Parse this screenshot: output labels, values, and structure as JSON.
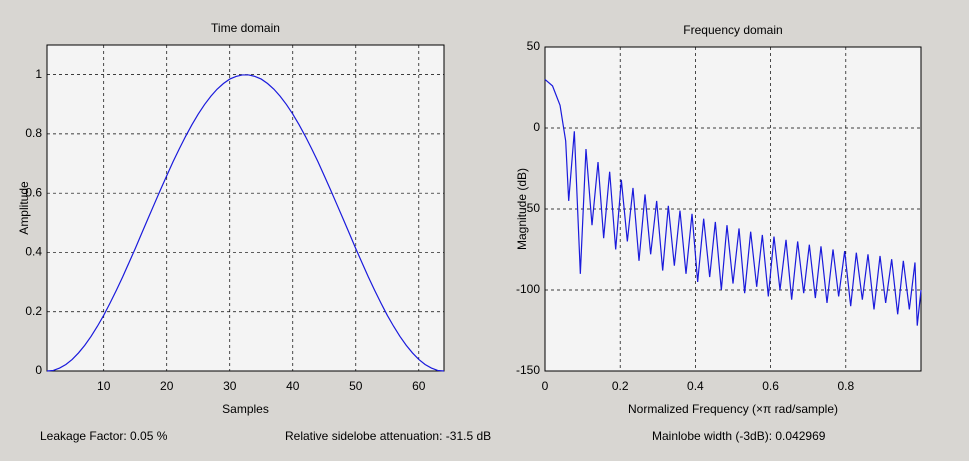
{
  "chart_data": [
    {
      "type": "line",
      "title": "Time domain",
      "xlabel": "Samples",
      "ylabel": "Amplitude",
      "color": "#1a1adc",
      "grid": true,
      "xlim": [
        1,
        64
      ],
      "ylim": [
        0,
        1.1
      ],
      "xticks": [
        10,
        20,
        30,
        40,
        50,
        60
      ],
      "yticks": [
        0,
        0.2,
        0.4,
        0.6,
        0.8,
        1
      ],
      "x": [
        1,
        2,
        3,
        4,
        5,
        6,
        7,
        8,
        9,
        10,
        11,
        12,
        13,
        14,
        15,
        16,
        17,
        18,
        19,
        20,
        21,
        22,
        23,
        24,
        25,
        26,
        27,
        28,
        29,
        30,
        31,
        32,
        33,
        34,
        35,
        36,
        37,
        38,
        39,
        40,
        41,
        42,
        43,
        44,
        45,
        46,
        47,
        48,
        49,
        50,
        51,
        52,
        53,
        54,
        55,
        56,
        57,
        58,
        59,
        60,
        61,
        62,
        63,
        64
      ],
      "values": [
        0,
        0.002,
        0.01,
        0.022,
        0.039,
        0.061,
        0.087,
        0.117,
        0.151,
        0.188,
        0.229,
        0.272,
        0.317,
        0.365,
        0.413,
        0.463,
        0.513,
        0.562,
        0.611,
        0.659,
        0.706,
        0.75,
        0.792,
        0.831,
        0.867,
        0.899,
        0.927,
        0.951,
        0.97,
        0.985,
        0.994,
        0.999,
        0.999,
        0.994,
        0.985,
        0.97,
        0.951,
        0.927,
        0.899,
        0.867,
        0.831,
        0.792,
        0.75,
        0.706,
        0.659,
        0.611,
        0.562,
        0.513,
        0.463,
        0.413,
        0.365,
        0.317,
        0.272,
        0.229,
        0.188,
        0.151,
        0.117,
        0.087,
        0.061,
        0.039,
        0.022,
        0.01,
        0.002,
        0
      ]
    },
    {
      "type": "line",
      "title": "Frequency domain",
      "xlabel": "Normalized Frequency  (×π rad/sample)",
      "ylabel": "Magnitude (dB)",
      "color": "#1a1adc",
      "grid": true,
      "xlim": [
        0,
        1
      ],
      "ylim": [
        -150,
        50
      ],
      "xticks": [
        0,
        0.2,
        0.4,
        0.6,
        0.8
      ],
      "yticks": [
        -150,
        -100,
        -50,
        0,
        50
      ],
      "x": [
        0,
        0.02,
        0.04,
        0.055,
        0.063,
        0.078,
        0.094,
        0.109,
        0.125,
        0.141,
        0.156,
        0.172,
        0.188,
        0.203,
        0.219,
        0.234,
        0.25,
        0.266,
        0.281,
        0.297,
        0.313,
        0.328,
        0.344,
        0.359,
        0.375,
        0.391,
        0.406,
        0.422,
        0.438,
        0.453,
        0.469,
        0.484,
        0.5,
        0.516,
        0.531,
        0.547,
        0.563,
        0.578,
        0.594,
        0.609,
        0.625,
        0.641,
        0.656,
        0.672,
        0.688,
        0.703,
        0.719,
        0.734,
        0.75,
        0.766,
        0.781,
        0.797,
        0.813,
        0.828,
        0.844,
        0.859,
        0.875,
        0.891,
        0.906,
        0.922,
        0.938,
        0.953,
        0.969,
        0.984,
        0.99,
        1
      ],
      "values": [
        30,
        26,
        14,
        -8,
        -45,
        -2,
        -90,
        -13,
        -60,
        -21,
        -68,
        -27,
        -75,
        -32,
        -70,
        -37,
        -82,
        -41,
        -78,
        -45,
        -88,
        -48,
        -85,
        -51,
        -90,
        -53,
        -95,
        -56,
        -92,
        -58,
        -100,
        -60,
        -96,
        -62,
        -102,
        -64,
        -98,
        -66,
        -104,
        -67,
        -100,
        -69,
        -106,
        -70,
        -102,
        -72,
        -105,
        -73,
        -108,
        -75,
        -104,
        -76,
        -110,
        -77,
        -106,
        -78,
        -112,
        -79,
        -108,
        -81,
        -115,
        -82,
        -112,
        -83,
        -122,
        -100
      ]
    }
  ],
  "status": {
    "leakage": "Leakage Factor: 0.05 %",
    "sidelobe": "Relative sidelobe attenuation: -31.5 dB",
    "mainlobe": "Mainlobe width (-3dB): 0.042969"
  }
}
